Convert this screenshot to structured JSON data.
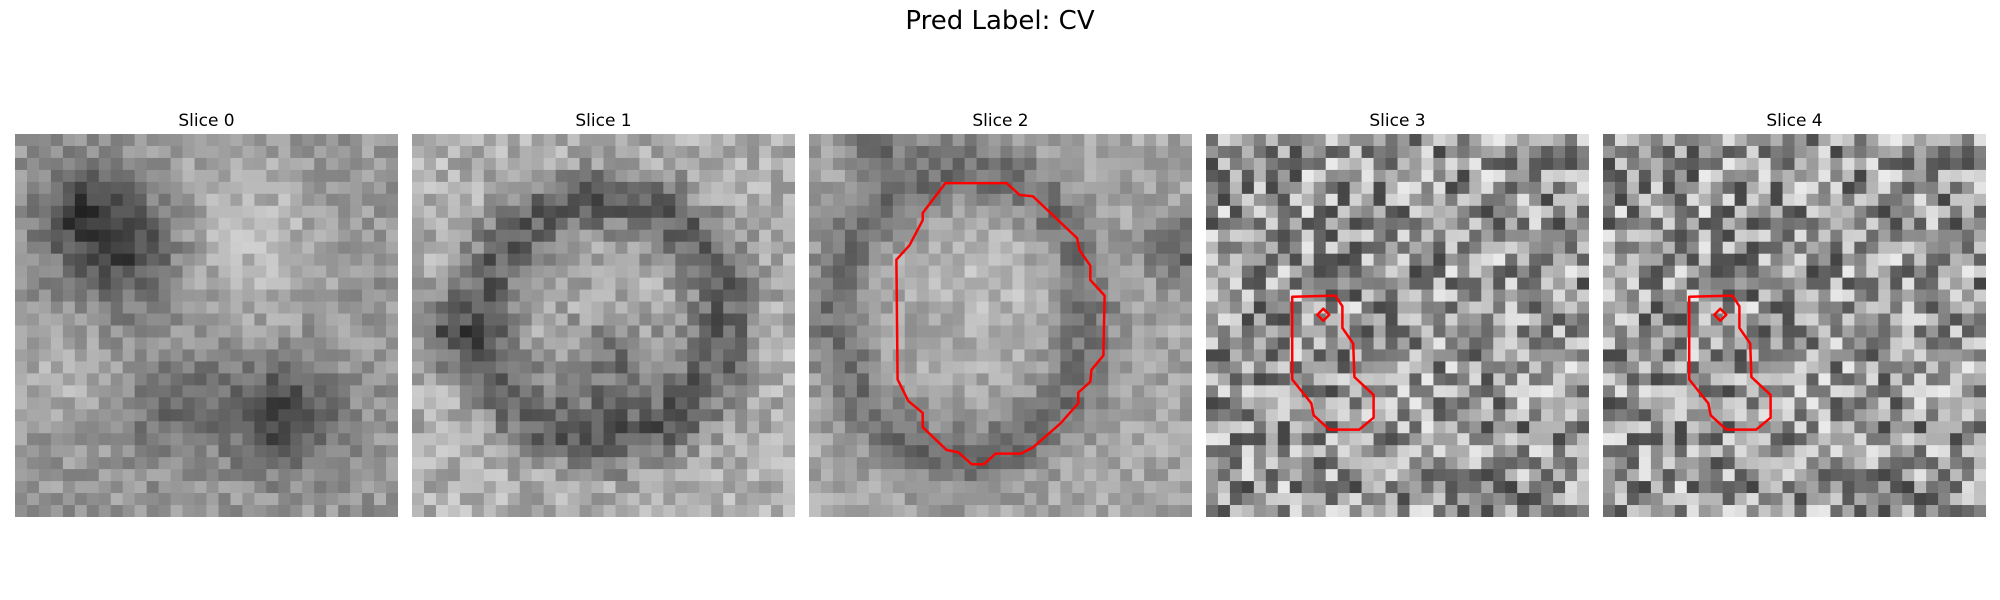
{
  "title": "Pred Label: CV",
  "slices": [
    {
      "label": "Slice 0",
      "has_contour": false,
      "seed": 11,
      "pattern": "blobs0"
    },
    {
      "label": "Slice 1",
      "has_contour": false,
      "seed": 23,
      "pattern": "ring"
    },
    {
      "label": "Slice 2",
      "has_contour": true,
      "seed": 37,
      "pattern": "vesicle",
      "contour": "large"
    },
    {
      "label": "Slice 3",
      "has_contour": true,
      "seed": 51,
      "pattern": "noise",
      "contour": "small"
    },
    {
      "label": "Slice 4",
      "has_contour": true,
      "seed": 51,
      "pattern": "noise",
      "contour": "small"
    }
  ],
  "colors": {
    "contour": "#ff0000"
  }
}
